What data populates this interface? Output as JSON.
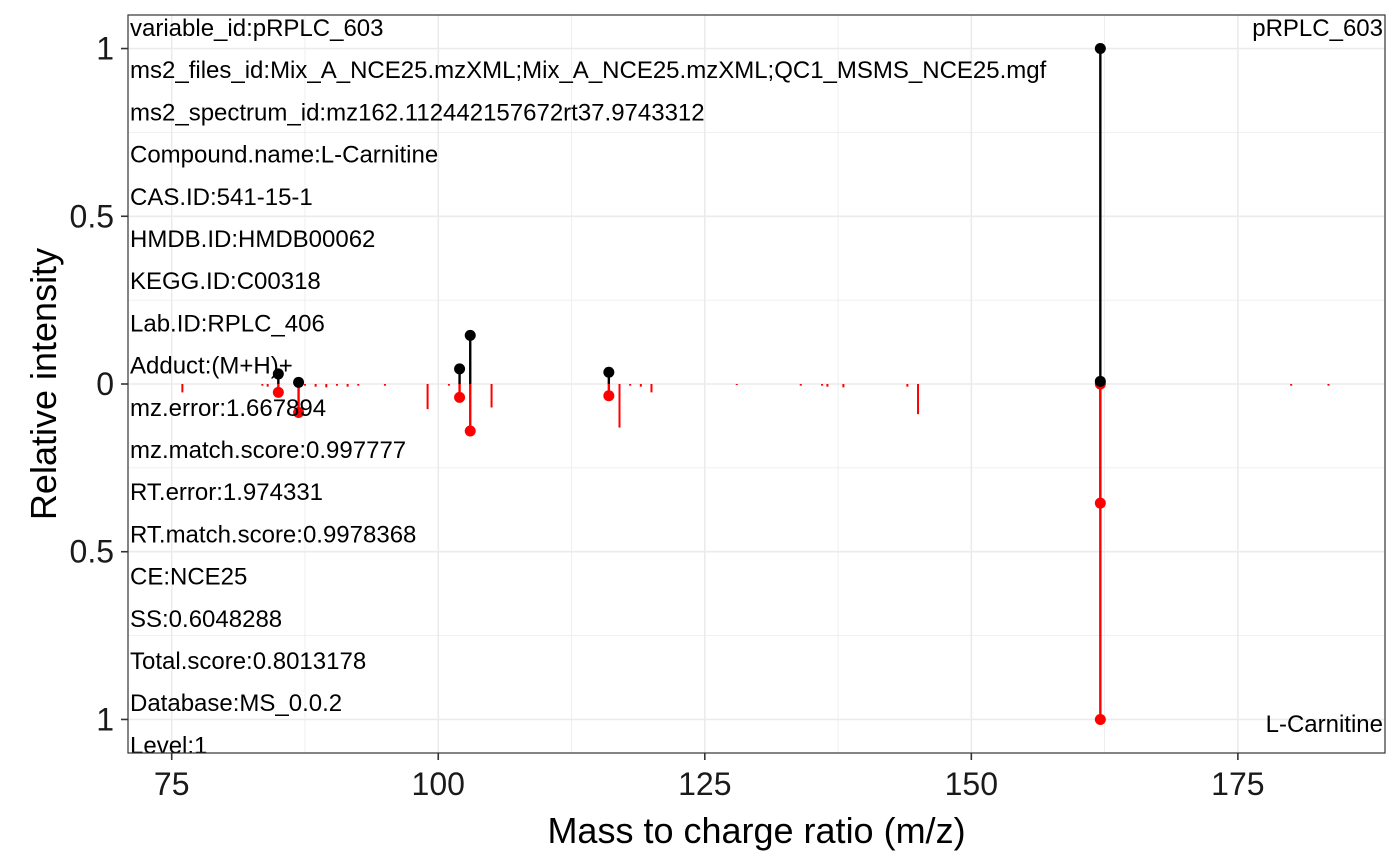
{
  "chart_data": {
    "type": "mirror-stem",
    "xlabel": "Mass to charge ratio (m/z)",
    "ylabel": "Relative intensity",
    "xlim": [
      70.9,
      188.8
    ],
    "ylim": [
      -1.1,
      1.1
    ],
    "x_ticks": [
      75,
      100,
      125,
      150,
      175
    ],
    "y_ticks": [
      {
        "value": 1,
        "label": "1"
      },
      {
        "value": 0.5,
        "label": "0.5"
      },
      {
        "value": 0,
        "label": "0"
      },
      {
        "value": -0.5,
        "label": "0.5"
      },
      {
        "value": -1,
        "label": "1"
      }
    ],
    "grid": true,
    "top_label": "pRPLC_603",
    "bottom_label": "L-Carnitine",
    "colors": {
      "experimental": "#000000",
      "reference": "#ff0000",
      "grid": "#ebebeb",
      "border": "#333333"
    },
    "experimental": {
      "matched": [
        {
          "mz": 85.0,
          "intensity": 0.03
        },
        {
          "mz": 86.9,
          "intensity": 0.005
        },
        {
          "mz": 102.0,
          "intensity": 0.045
        },
        {
          "mz": 103.0,
          "intensity": 0.145
        },
        {
          "mz": 116.0,
          "intensity": 0.035
        },
        {
          "mz": 162.1,
          "intensity": 1.0
        },
        {
          "mz": 162.1,
          "intensity": 0.008
        }
      ]
    },
    "reference": {
      "matched": [
        {
          "mz": 85.0,
          "intensity": 0.025
        },
        {
          "mz": 86.9,
          "intensity": 0.085
        },
        {
          "mz": 102.0,
          "intensity": 0.04
        },
        {
          "mz": 103.0,
          "intensity": 0.14
        },
        {
          "mz": 116.0,
          "intensity": 0.035
        },
        {
          "mz": 162.1,
          "intensity": 0.0
        },
        {
          "mz": 162.1,
          "intensity": 0.355
        },
        {
          "mz": 162.1,
          "intensity": 1.0
        }
      ],
      "unmatched": [
        {
          "mz": 76.0,
          "intensity": 0.025
        },
        {
          "mz": 83.5,
          "intensity": 0.005
        },
        {
          "mz": 84.0,
          "intensity": 0.008
        },
        {
          "mz": 87.5,
          "intensity": 0.005
        },
        {
          "mz": 88.5,
          "intensity": 0.008
        },
        {
          "mz": 89.5,
          "intensity": 0.01
        },
        {
          "mz": 90.5,
          "intensity": 0.005
        },
        {
          "mz": 91.5,
          "intensity": 0.008
        },
        {
          "mz": 92.5,
          "intensity": 0.005
        },
        {
          "mz": 95.0,
          "intensity": 0.005
        },
        {
          "mz": 99.0,
          "intensity": 0.075
        },
        {
          "mz": 101.0,
          "intensity": 0.005
        },
        {
          "mz": 105.0,
          "intensity": 0.07
        },
        {
          "mz": 117.0,
          "intensity": 0.13
        },
        {
          "mz": 118.0,
          "intensity": 0.005
        },
        {
          "mz": 119.0,
          "intensity": 0.008
        },
        {
          "mz": 120.0,
          "intensity": 0.025
        },
        {
          "mz": 128.0,
          "intensity": 0.003
        },
        {
          "mz": 134.0,
          "intensity": 0.005
        },
        {
          "mz": 136.0,
          "intensity": 0.005
        },
        {
          "mz": 136.5,
          "intensity": 0.008
        },
        {
          "mz": 138.0,
          "intensity": 0.01
        },
        {
          "mz": 144.0,
          "intensity": 0.008
        },
        {
          "mz": 145.0,
          "intensity": 0.09
        },
        {
          "mz": 180.0,
          "intensity": 0.005
        },
        {
          "mz": 183.5,
          "intensity": 0.005
        }
      ]
    },
    "annotations": [
      "variable_id:pRPLC_603",
      "ms2_files_id:Mix_A_NCE25.mzXML;Mix_A_NCE25.mzXML;QC1_MSMS_NCE25.mgf",
      "ms2_spectrum_id:mz162.112442157672rt37.9743312",
      "Compound.name:L-Carnitine",
      "CAS.ID:541-15-1",
      "HMDB.ID:HMDB00062",
      "KEGG.ID:C00318",
      "Lab.ID:RPLC_406",
      "Adduct:(M+H)+",
      "mz.error:1.667894",
      "mz.match.score:0.997777",
      "RT.error:1.974331",
      "RT.match.score:0.9978368",
      "CE:NCE25",
      "SS:0.6048288",
      "Total.score:0.8013178",
      "Database:MS_0.0.2",
      "Level:1"
    ]
  }
}
